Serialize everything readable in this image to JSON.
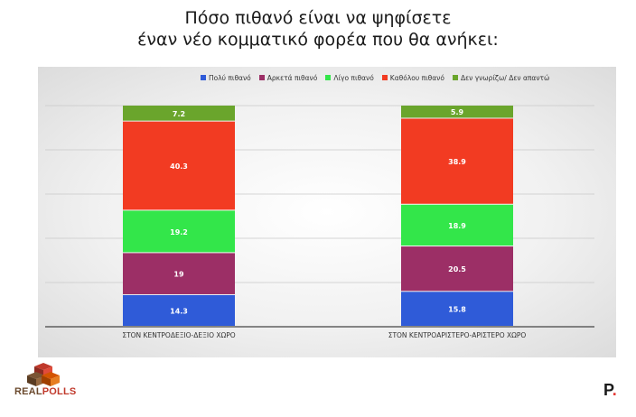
{
  "chart_data": {
    "type": "bar",
    "stacked": true,
    "title_lines": [
      "Πόσο πιθανό είναι να ψηφίσετε",
      "έναν νέο κομματικό φορέα που θα ανήκει:"
    ],
    "categories": [
      "ΣΤΟΝ ΚΕΝΤΡΟΔΕΞΙΟ-ΔΕΞΙΟ ΧΩΡΟ",
      "ΣΤΟΝ ΚΕΝΤΡΟΑΡΙΣΤΕΡΟ-ΑΡΙΣΤΕΡΟ ΧΩΡΟ"
    ],
    "series": [
      {
        "name": "Πολύ πιθανό",
        "color": "#2f5bd8",
        "values": [
          14.3,
          15.8
        ]
      },
      {
        "name": "Αρκετά πιθανό",
        "color": "#9c2f66",
        "values": [
          19,
          20.5
        ]
      },
      {
        "name": "Λίγο πιθανό",
        "color": "#33e64a",
        "values": [
          19.2,
          18.9
        ]
      },
      {
        "name": "Καθόλου πιθανό",
        "color": "#f23b22",
        "values": [
          40.3,
          38.9
        ]
      },
      {
        "name": "Δεν γνωρίζω/ Δεν απαντώ",
        "color": "#6aa52c",
        "values": [
          7.2,
          5.9
        ]
      }
    ],
    "ylim": [
      0,
      100
    ],
    "grid": true,
    "legend_position": "top"
  },
  "logos": {
    "realpolls_real": "REAL",
    "realpolls_polls": "POLLS",
    "publisher_letter": "P",
    "publisher_dot": "."
  }
}
